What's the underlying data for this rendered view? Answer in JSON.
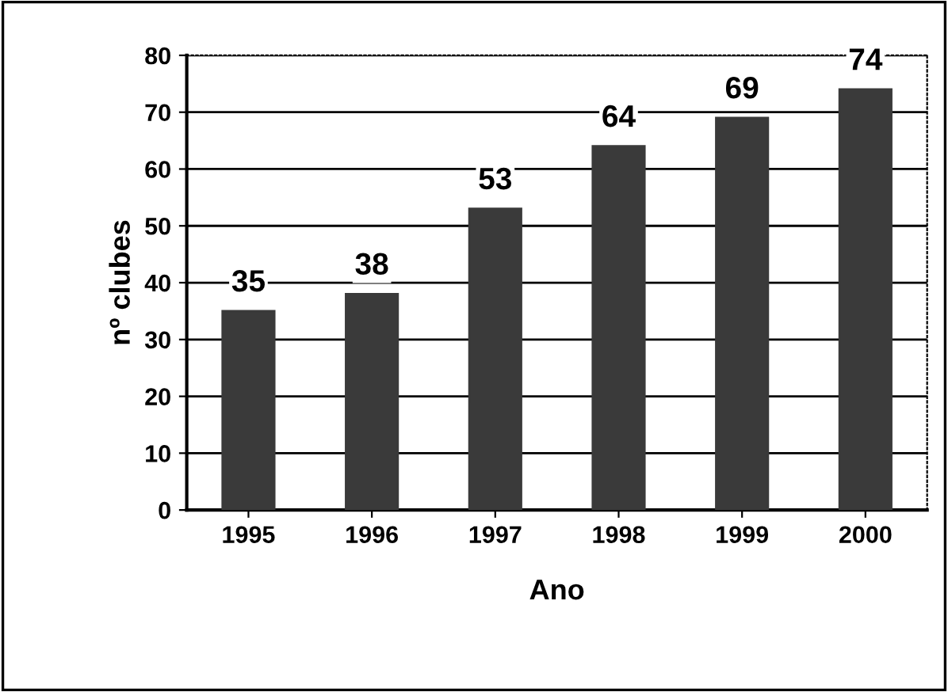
{
  "chart_data": {
    "type": "bar",
    "xlabel": "Ano",
    "ylabel": "nº clubes",
    "categories": [
      "1995",
      "1996",
      "1997",
      "1998",
      "1999",
      "2000"
    ],
    "values": [
      35,
      38,
      53,
      64,
      69,
      74
    ],
    "color": "#3a3a3a",
    "ylim": [
      0,
      80
    ],
    "yticks": [
      0,
      10,
      20,
      30,
      40,
      50,
      60,
      70,
      80
    ],
    "grid": "y",
    "data_labels": true
  }
}
